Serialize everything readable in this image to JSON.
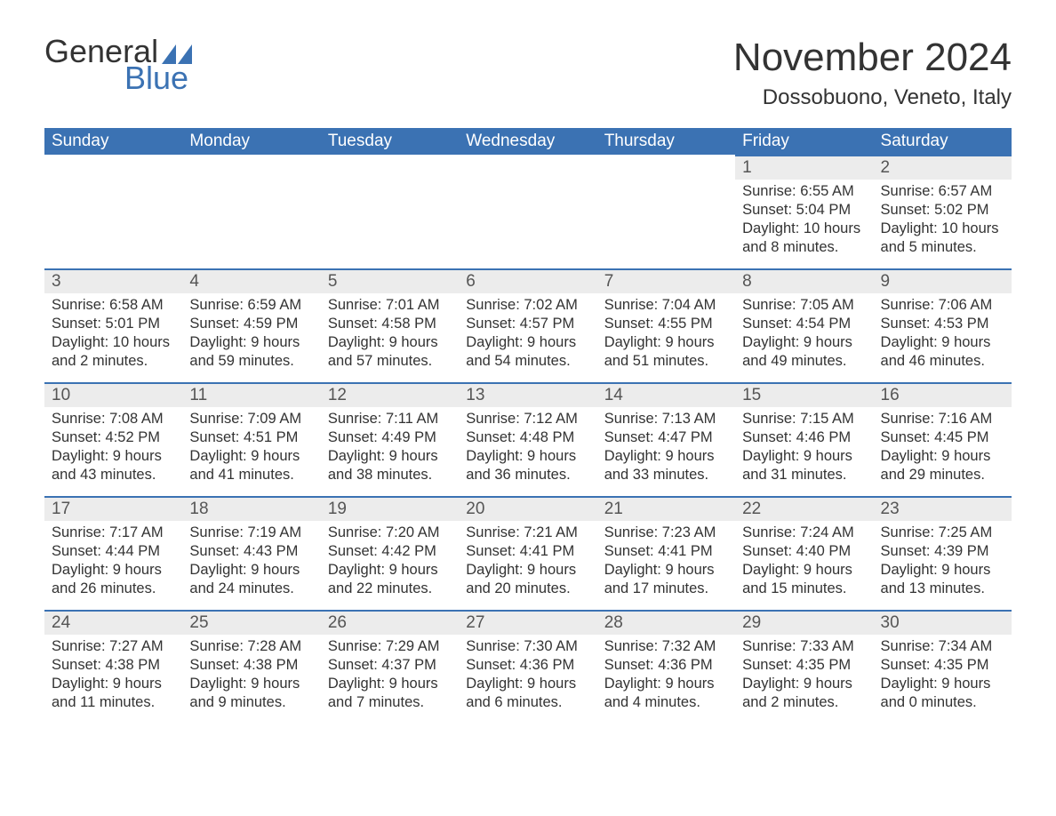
{
  "logo": {
    "word1": "General",
    "word2": "Blue",
    "tri_color": "#3b72b3"
  },
  "title": "November 2024",
  "location": "Dossobuono, Veneto, Italy",
  "colors": {
    "header_bg": "#3b72b3",
    "header_text": "#ffffff",
    "daynum_bg": "#ececec",
    "row_border": "#3b72b3",
    "body_text": "#333333",
    "page_bg": "#ffffff"
  },
  "day_headers": [
    "Sunday",
    "Monday",
    "Tuesday",
    "Wednesday",
    "Thursday",
    "Friday",
    "Saturday"
  ],
  "weeks": [
    [
      null,
      null,
      null,
      null,
      null,
      {
        "n": "1",
        "sr": "6:55 AM",
        "ss": "5:04 PM",
        "dl": "10 hours and 8 minutes."
      },
      {
        "n": "2",
        "sr": "6:57 AM",
        "ss": "5:02 PM",
        "dl": "10 hours and 5 minutes."
      }
    ],
    [
      {
        "n": "3",
        "sr": "6:58 AM",
        "ss": "5:01 PM",
        "dl": "10 hours and 2 minutes."
      },
      {
        "n": "4",
        "sr": "6:59 AM",
        "ss": "4:59 PM",
        "dl": "9 hours and 59 minutes."
      },
      {
        "n": "5",
        "sr": "7:01 AM",
        "ss": "4:58 PM",
        "dl": "9 hours and 57 minutes."
      },
      {
        "n": "6",
        "sr": "7:02 AM",
        "ss": "4:57 PM",
        "dl": "9 hours and 54 minutes."
      },
      {
        "n": "7",
        "sr": "7:04 AM",
        "ss": "4:55 PM",
        "dl": "9 hours and 51 minutes."
      },
      {
        "n": "8",
        "sr": "7:05 AM",
        "ss": "4:54 PM",
        "dl": "9 hours and 49 minutes."
      },
      {
        "n": "9",
        "sr": "7:06 AM",
        "ss": "4:53 PM",
        "dl": "9 hours and 46 minutes."
      }
    ],
    [
      {
        "n": "10",
        "sr": "7:08 AM",
        "ss": "4:52 PM",
        "dl": "9 hours and 43 minutes."
      },
      {
        "n": "11",
        "sr": "7:09 AM",
        "ss": "4:51 PM",
        "dl": "9 hours and 41 minutes."
      },
      {
        "n": "12",
        "sr": "7:11 AM",
        "ss": "4:49 PM",
        "dl": "9 hours and 38 minutes."
      },
      {
        "n": "13",
        "sr": "7:12 AM",
        "ss": "4:48 PM",
        "dl": "9 hours and 36 minutes."
      },
      {
        "n": "14",
        "sr": "7:13 AM",
        "ss": "4:47 PM",
        "dl": "9 hours and 33 minutes."
      },
      {
        "n": "15",
        "sr": "7:15 AM",
        "ss": "4:46 PM",
        "dl": "9 hours and 31 minutes."
      },
      {
        "n": "16",
        "sr": "7:16 AM",
        "ss": "4:45 PM",
        "dl": "9 hours and 29 minutes."
      }
    ],
    [
      {
        "n": "17",
        "sr": "7:17 AM",
        "ss": "4:44 PM",
        "dl": "9 hours and 26 minutes."
      },
      {
        "n": "18",
        "sr": "7:19 AM",
        "ss": "4:43 PM",
        "dl": "9 hours and 24 minutes."
      },
      {
        "n": "19",
        "sr": "7:20 AM",
        "ss": "4:42 PM",
        "dl": "9 hours and 22 minutes."
      },
      {
        "n": "20",
        "sr": "7:21 AM",
        "ss": "4:41 PM",
        "dl": "9 hours and 20 minutes."
      },
      {
        "n": "21",
        "sr": "7:23 AM",
        "ss": "4:41 PM",
        "dl": "9 hours and 17 minutes."
      },
      {
        "n": "22",
        "sr": "7:24 AM",
        "ss": "4:40 PM",
        "dl": "9 hours and 15 minutes."
      },
      {
        "n": "23",
        "sr": "7:25 AM",
        "ss": "4:39 PM",
        "dl": "9 hours and 13 minutes."
      }
    ],
    [
      {
        "n": "24",
        "sr": "7:27 AM",
        "ss": "4:38 PM",
        "dl": "9 hours and 11 minutes."
      },
      {
        "n": "25",
        "sr": "7:28 AM",
        "ss": "4:38 PM",
        "dl": "9 hours and 9 minutes."
      },
      {
        "n": "26",
        "sr": "7:29 AM",
        "ss": "4:37 PM",
        "dl": "9 hours and 7 minutes."
      },
      {
        "n": "27",
        "sr": "7:30 AM",
        "ss": "4:36 PM",
        "dl": "9 hours and 6 minutes."
      },
      {
        "n": "28",
        "sr": "7:32 AM",
        "ss": "4:36 PM",
        "dl": "9 hours and 4 minutes."
      },
      {
        "n": "29",
        "sr": "7:33 AM",
        "ss": "4:35 PM",
        "dl": "9 hours and 2 minutes."
      },
      {
        "n": "30",
        "sr": "7:34 AM",
        "ss": "4:35 PM",
        "dl": "9 hours and 0 minutes."
      }
    ]
  ],
  "labels": {
    "sunrise": "Sunrise: ",
    "sunset": "Sunset: ",
    "daylight": "Daylight: "
  }
}
